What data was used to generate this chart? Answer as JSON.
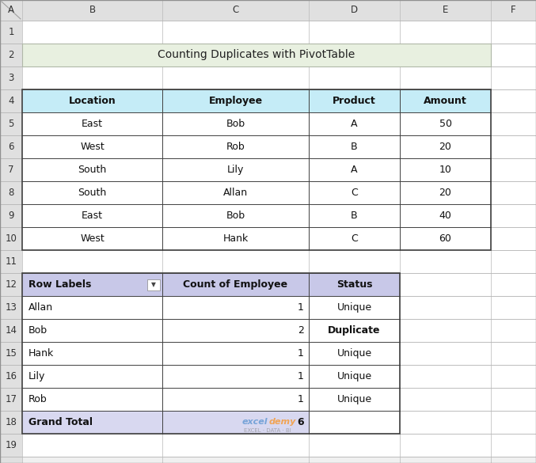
{
  "title": "Counting Duplicates with PivotTable",
  "title_bg": "#e8f0e0",
  "light_blue_header": "#c5ecf7",
  "light_purple_header": "#c8c8e8",
  "grand_total_bg": "#d8d8f0",
  "main_table_headers": [
    "Location",
    "Employee",
    "Product",
    "Amount"
  ],
  "main_table_data": [
    [
      "East",
      "Bob",
      "A",
      "50"
    ],
    [
      "West",
      "Rob",
      "B",
      "20"
    ],
    [
      "South",
      "Lily",
      "A",
      "10"
    ],
    [
      "South",
      "Allan",
      "C",
      "20"
    ],
    [
      "East",
      "Bob",
      "B",
      "40"
    ],
    [
      "West",
      "Hank",
      "C",
      "60"
    ]
  ],
  "pivot_headers": [
    "Row Labels",
    "Count of Employee",
    "Status"
  ],
  "pivot_data": [
    [
      "Allan",
      "1",
      "Unique"
    ],
    [
      "Bob",
      "2",
      "Duplicate"
    ],
    [
      "Hank",
      "1",
      "Unique"
    ],
    [
      "Lily",
      "1",
      "Unique"
    ],
    [
      "Rob",
      "1",
      "Unique"
    ]
  ],
  "grand_total": [
    "Grand Total",
    "6"
  ],
  "excel_col_labels": [
    "A",
    "B",
    "C",
    "D",
    "E",
    "F"
  ],
  "excel_row_labels": [
    "1",
    "2",
    "3",
    "4",
    "5",
    "6",
    "7",
    "8",
    "9",
    "10",
    "11",
    "12",
    "13",
    "14",
    "15",
    "16",
    "17",
    "18",
    "19"
  ],
  "grid_color": "#b8b8b8",
  "header_bg": "#e0e0e0",
  "watermark_blue": "#4488cc",
  "watermark_orange": "#ff8800",
  "watermark_gray": "#888888"
}
